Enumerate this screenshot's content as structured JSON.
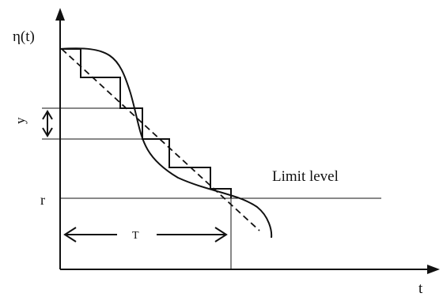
{
  "diagram": {
    "y_axis_label": "η(t)",
    "x_axis_label": "t",
    "limit_label": "Limit level",
    "r_label": "r",
    "y_label": "y",
    "T_label": "T"
  }
}
